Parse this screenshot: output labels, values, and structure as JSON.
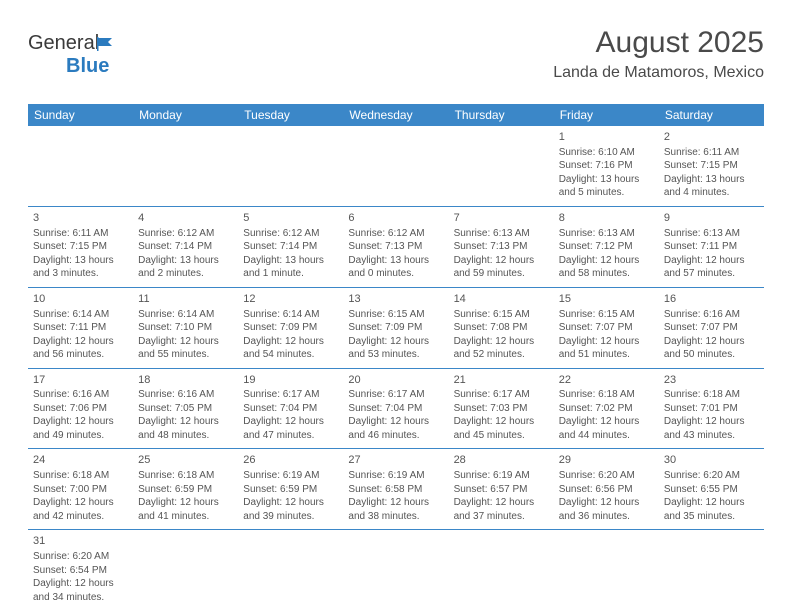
{
  "logo": {
    "text1": "General",
    "text2": "Blue"
  },
  "title": "August 2025",
  "location": "Landa de Matamoros, Mexico",
  "colors": {
    "header_bg": "#3b87c8",
    "header_text": "#ffffff",
    "text": "#555555",
    "border": "#3b87c8",
    "logo_blue": "#2b7bbf"
  },
  "day_headers": [
    "Sunday",
    "Monday",
    "Tuesday",
    "Wednesday",
    "Thursday",
    "Friday",
    "Saturday"
  ],
  "weeks": [
    [
      null,
      null,
      null,
      null,
      null,
      {
        "n": "1",
        "sr": "6:10 AM",
        "ss": "7:16 PM",
        "dh": "13",
        "dm": "5"
      },
      {
        "n": "2",
        "sr": "6:11 AM",
        "ss": "7:15 PM",
        "dh": "13",
        "dm": "4"
      }
    ],
    [
      {
        "n": "3",
        "sr": "6:11 AM",
        "ss": "7:15 PM",
        "dh": "13",
        "dm": "3"
      },
      {
        "n": "4",
        "sr": "6:12 AM",
        "ss": "7:14 PM",
        "dh": "13",
        "dm": "2"
      },
      {
        "n": "5",
        "sr": "6:12 AM",
        "ss": "7:14 PM",
        "dh": "13",
        "dm": "1"
      },
      {
        "n": "6",
        "sr": "6:12 AM",
        "ss": "7:13 PM",
        "dh": "13",
        "dm": "0"
      },
      {
        "n": "7",
        "sr": "6:13 AM",
        "ss": "7:13 PM",
        "dh": "12",
        "dm": "59"
      },
      {
        "n": "8",
        "sr": "6:13 AM",
        "ss": "7:12 PM",
        "dh": "12",
        "dm": "58"
      },
      {
        "n": "9",
        "sr": "6:13 AM",
        "ss": "7:11 PM",
        "dh": "12",
        "dm": "57"
      }
    ],
    [
      {
        "n": "10",
        "sr": "6:14 AM",
        "ss": "7:11 PM",
        "dh": "12",
        "dm": "56"
      },
      {
        "n": "11",
        "sr": "6:14 AM",
        "ss": "7:10 PM",
        "dh": "12",
        "dm": "55"
      },
      {
        "n": "12",
        "sr": "6:14 AM",
        "ss": "7:09 PM",
        "dh": "12",
        "dm": "54"
      },
      {
        "n": "13",
        "sr": "6:15 AM",
        "ss": "7:09 PM",
        "dh": "12",
        "dm": "53"
      },
      {
        "n": "14",
        "sr": "6:15 AM",
        "ss": "7:08 PM",
        "dh": "12",
        "dm": "52"
      },
      {
        "n": "15",
        "sr": "6:15 AM",
        "ss": "7:07 PM",
        "dh": "12",
        "dm": "51"
      },
      {
        "n": "16",
        "sr": "6:16 AM",
        "ss": "7:07 PM",
        "dh": "12",
        "dm": "50"
      }
    ],
    [
      {
        "n": "17",
        "sr": "6:16 AM",
        "ss": "7:06 PM",
        "dh": "12",
        "dm": "49"
      },
      {
        "n": "18",
        "sr": "6:16 AM",
        "ss": "7:05 PM",
        "dh": "12",
        "dm": "48"
      },
      {
        "n": "19",
        "sr": "6:17 AM",
        "ss": "7:04 PM",
        "dh": "12",
        "dm": "47"
      },
      {
        "n": "20",
        "sr": "6:17 AM",
        "ss": "7:04 PM",
        "dh": "12",
        "dm": "46"
      },
      {
        "n": "21",
        "sr": "6:17 AM",
        "ss": "7:03 PM",
        "dh": "12",
        "dm": "45"
      },
      {
        "n": "22",
        "sr": "6:18 AM",
        "ss": "7:02 PM",
        "dh": "12",
        "dm": "44"
      },
      {
        "n": "23",
        "sr": "6:18 AM",
        "ss": "7:01 PM",
        "dh": "12",
        "dm": "43"
      }
    ],
    [
      {
        "n": "24",
        "sr": "6:18 AM",
        "ss": "7:00 PM",
        "dh": "12",
        "dm": "42"
      },
      {
        "n": "25",
        "sr": "6:18 AM",
        "ss": "6:59 PM",
        "dh": "12",
        "dm": "41"
      },
      {
        "n": "26",
        "sr": "6:19 AM",
        "ss": "6:59 PM",
        "dh": "12",
        "dm": "39"
      },
      {
        "n": "27",
        "sr": "6:19 AM",
        "ss": "6:58 PM",
        "dh": "12",
        "dm": "38"
      },
      {
        "n": "28",
        "sr": "6:19 AM",
        "ss": "6:57 PM",
        "dh": "12",
        "dm": "37"
      },
      {
        "n": "29",
        "sr": "6:20 AM",
        "ss": "6:56 PM",
        "dh": "12",
        "dm": "36"
      },
      {
        "n": "30",
        "sr": "6:20 AM",
        "ss": "6:55 PM",
        "dh": "12",
        "dm": "35"
      }
    ],
    [
      {
        "n": "31",
        "sr": "6:20 AM",
        "ss": "6:54 PM",
        "dh": "12",
        "dm": "34"
      },
      null,
      null,
      null,
      null,
      null,
      null
    ]
  ],
  "labels": {
    "sunrise": "Sunrise:",
    "sunset": "Sunset:",
    "daylight": "Daylight:",
    "hours": "hours",
    "and": "and",
    "minutes": "minutes.",
    "minute": "minute."
  }
}
